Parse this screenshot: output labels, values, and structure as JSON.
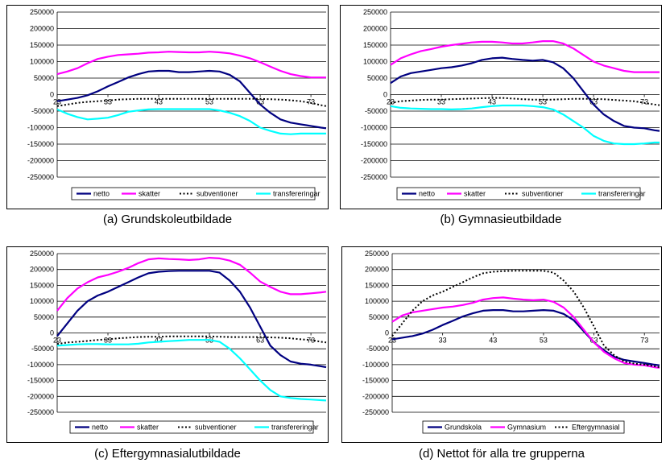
{
  "chart_data": [
    {
      "type": "line",
      "caption": "(a) Grundskoleutbildade",
      "ylim": [
        -250000,
        250000
      ],
      "yticks": [
        250000,
        200000,
        150000,
        100000,
        50000,
        0,
        -50000,
        -100000,
        -150000,
        -200000,
        -250000
      ],
      "ytick_labels": [
        "250000",
        "200000",
        "150000",
        "100000",
        "50000",
        "0",
        "-50000",
        "-100000",
        "-150000",
        "-200000",
        "-250000"
      ],
      "xlim": [
        23,
        76
      ],
      "xticks": [
        23,
        33,
        43,
        53,
        63,
        73
      ],
      "xtick_labels": [
        "23",
        "33",
        "43",
        "53",
        "63",
        "73"
      ],
      "x": [
        23,
        25,
        27,
        29,
        31,
        33,
        35,
        37,
        39,
        41,
        43,
        45,
        47,
        49,
        51,
        53,
        55,
        57,
        59,
        61,
        63,
        65,
        67,
        69,
        71,
        73,
        75,
        76
      ],
      "grid": true,
      "legend": "bottom",
      "series": [
        {
          "name": "netto",
          "color": "#000080",
          "dash": "solid",
          "values": [
            -20000,
            -15000,
            -10000,
            -2000,
            10000,
            25000,
            38000,
            52000,
            62000,
            70000,
            72000,
            72000,
            68000,
            68000,
            70000,
            72000,
            70000,
            60000,
            40000,
            5000,
            -30000,
            -55000,
            -75000,
            -85000,
            -90000,
            -95000,
            -100000,
            -102000
          ]
        },
        {
          "name": "skatter",
          "color": "#FF00FF",
          "dash": "solid",
          "values": [
            62000,
            70000,
            80000,
            95000,
            108000,
            115000,
            120000,
            122000,
            124000,
            127000,
            128000,
            130000,
            129000,
            128000,
            128000,
            130000,
            128000,
            125000,
            118000,
            110000,
            98000,
            85000,
            72000,
            62000,
            56000,
            52000,
            52000,
            52000
          ]
        },
        {
          "name": "subventioner",
          "color": "#000000",
          "dash": "dot",
          "values": [
            -35000,
            -30000,
            -25000,
            -22000,
            -20000,
            -18000,
            -15000,
            -14000,
            -13000,
            -13000,
            -13000,
            -13000,
            -13000,
            -13000,
            -13000,
            -13000,
            -13000,
            -13000,
            -13000,
            -13000,
            -13000,
            -14000,
            -15000,
            -17000,
            -20000,
            -25000,
            -32000,
            -35000
          ]
        },
        {
          "name": "transfereringar",
          "color": "#00FFFF",
          "dash": "solid",
          "values": [
            -45000,
            -58000,
            -68000,
            -75000,
            -73000,
            -70000,
            -62000,
            -52000,
            -48000,
            -45000,
            -44000,
            -44000,
            -44000,
            -44000,
            -44000,
            -44000,
            -48000,
            -55000,
            -65000,
            -80000,
            -100000,
            -110000,
            -118000,
            -120000,
            -118000,
            -118000,
            -118000,
            -118000
          ]
        }
      ]
    },
    {
      "type": "line",
      "caption": "(b) Gymnasieutbildade",
      "ylim": [
        -250000,
        250000
      ],
      "yticks": [
        250000,
        200000,
        150000,
        100000,
        50000,
        0,
        -50000,
        -100000,
        -150000,
        -200000,
        -250000
      ],
      "ytick_labels": [
        "250000",
        "200000",
        "150000",
        "100000",
        "50000",
        "0",
        "-50000",
        "-100000",
        "-150000",
        "-200000",
        "-250000"
      ],
      "xlim": [
        23,
        76
      ],
      "xticks": [
        23,
        33,
        43,
        53,
        63,
        73
      ],
      "xtick_labels": [
        "23",
        "33",
        "43",
        "53",
        "63",
        "73"
      ],
      "x": [
        23,
        25,
        27,
        29,
        31,
        33,
        35,
        37,
        39,
        41,
        43,
        45,
        47,
        49,
        51,
        53,
        55,
        57,
        59,
        61,
        63,
        65,
        67,
        69,
        71,
        73,
        75,
        76
      ],
      "grid": true,
      "legend": "bottom",
      "series": [
        {
          "name": "netto",
          "color": "#000080",
          "dash": "solid",
          "values": [
            35000,
            55000,
            65000,
            70000,
            75000,
            80000,
            83000,
            88000,
            95000,
            105000,
            110000,
            112000,
            108000,
            105000,
            103000,
            105000,
            98000,
            80000,
            50000,
            10000,
            -30000,
            -60000,
            -80000,
            -95000,
            -100000,
            -102000,
            -108000,
            -110000
          ]
        },
        {
          "name": "skatter",
          "color": "#FF00FF",
          "dash": "solid",
          "values": [
            90000,
            110000,
            122000,
            132000,
            138000,
            145000,
            150000,
            154000,
            158000,
            160000,
            160000,
            158000,
            155000,
            155000,
            158000,
            162000,
            162000,
            155000,
            140000,
            120000,
            100000,
            88000,
            80000,
            72000,
            68000,
            68000,
            68000,
            68000
          ]
        },
        {
          "name": "subventioner",
          "color": "#000000",
          "dash": "dot",
          "values": [
            -25000,
            -20000,
            -18000,
            -16000,
            -15000,
            -15000,
            -14000,
            -13000,
            -12000,
            -11000,
            -10000,
            -10000,
            -12000,
            -14000,
            -15000,
            -15000,
            -15000,
            -14000,
            -13000,
            -13000,
            -13000,
            -14000,
            -16000,
            -18000,
            -20000,
            -25000,
            -30000,
            -32000
          ]
        },
        {
          "name": "transfereringar",
          "color": "#00FFFF",
          "dash": "solid",
          "values": [
            -35000,
            -40000,
            -42000,
            -43000,
            -44000,
            -44000,
            -45000,
            -44000,
            -42000,
            -38000,
            -35000,
            -33000,
            -33000,
            -33000,
            -35000,
            -38000,
            -45000,
            -60000,
            -80000,
            -100000,
            -125000,
            -140000,
            -148000,
            -150000,
            -150000,
            -148000,
            -145000,
            -145000
          ]
        }
      ]
    },
    {
      "type": "line",
      "caption": "(c) Eftergymnasialutbildade",
      "ylim": [
        -250000,
        250000
      ],
      "yticks": [
        250000,
        200000,
        150000,
        100000,
        50000,
        0,
        -50000,
        -100000,
        -150000,
        -200000,
        -250000
      ],
      "ytick_labels": [
        "250000",
        "200000",
        "150000",
        "100000",
        "50000",
        "0",
        "-50000",
        "-100000",
        "-150000",
        "-200000",
        "-250000"
      ],
      "xlim": [
        23,
        76
      ],
      "xticks": [
        23,
        33,
        43,
        53,
        63,
        73
      ],
      "xtick_labels": [
        "23",
        "33",
        "43",
        "53",
        "63",
        "73"
      ],
      "x": [
        23,
        25,
        27,
        29,
        31,
        33,
        35,
        37,
        39,
        41,
        43,
        45,
        47,
        49,
        51,
        53,
        55,
        57,
        59,
        61,
        63,
        65,
        67,
        69,
        71,
        73,
        75,
        76
      ],
      "grid": true,
      "legend": "bottom",
      "series": [
        {
          "name": "netto",
          "color": "#000080",
          "dash": "solid",
          "values": [
            -10000,
            30000,
            70000,
            100000,
            118000,
            130000,
            145000,
            160000,
            175000,
            188000,
            193000,
            195000,
            196000,
            196000,
            196000,
            196000,
            190000,
            165000,
            130000,
            80000,
            20000,
            -40000,
            -70000,
            -90000,
            -97000,
            -100000,
            -105000,
            -108000
          ]
        },
        {
          "name": "skatter",
          "color": "#FF00FF",
          "dash": "solid",
          "values": [
            70000,
            110000,
            140000,
            160000,
            175000,
            183000,
            193000,
            205000,
            220000,
            232000,
            235000,
            233000,
            232000,
            230000,
            232000,
            237000,
            235000,
            228000,
            215000,
            190000,
            162000,
            145000,
            130000,
            122000,
            122000,
            125000,
            128000,
            130000
          ]
        },
        {
          "name": "subventioner",
          "color": "#000000",
          "dash": "dot",
          "values": [
            -35000,
            -30000,
            -28000,
            -25000,
            -22000,
            -20000,
            -17000,
            -15000,
            -13000,
            -12000,
            -12000,
            -11000,
            -11000,
            -11000,
            -11000,
            -11000,
            -12000,
            -13000,
            -13000,
            -13000,
            -13000,
            -14000,
            -15000,
            -17000,
            -20000,
            -22000,
            -28000,
            -30000
          ]
        },
        {
          "name": "transfereringar",
          "color": "#00FFFF",
          "dash": "solid",
          "values": [
            -40000,
            -38000,
            -36000,
            -35000,
            -35000,
            -36000,
            -36000,
            -36000,
            -34000,
            -30000,
            -28000,
            -26000,
            -24000,
            -22000,
            -22000,
            -22000,
            -28000,
            -50000,
            -80000,
            -115000,
            -150000,
            -180000,
            -200000,
            -205000,
            -208000,
            -210000,
            -212000,
            -213000
          ]
        }
      ]
    },
    {
      "type": "line",
      "caption": "(d) Nettot för  alla tre grupperna",
      "ylim": [
        -250000,
        250000
      ],
      "yticks": [
        250000,
        200000,
        150000,
        100000,
        50000,
        0,
        -50000,
        -100000,
        -150000,
        -200000,
        -250000
      ],
      "ytick_labels": [
        "250000",
        "200000",
        "150000",
        "100000",
        "50000",
        "0",
        "-50000",
        "-100000",
        "-150000",
        "-200000",
        "-250000"
      ],
      "xlim": [
        23,
        76
      ],
      "xticks": [
        23,
        33,
        43,
        53,
        63,
        73
      ],
      "xtick_labels": [
        "23",
        "33",
        "43",
        "53",
        "63",
        "73"
      ],
      "x": [
        23,
        25,
        27,
        29,
        31,
        33,
        35,
        37,
        39,
        41,
        43,
        45,
        47,
        49,
        51,
        53,
        55,
        57,
        59,
        61,
        63,
        65,
        67,
        69,
        71,
        73,
        75,
        76
      ],
      "grid": true,
      "legend": "bottom",
      "series": [
        {
          "name": "Grundskola",
          "color": "#000080",
          "dash": "solid",
          "values": [
            -20000,
            -15000,
            -10000,
            -2000,
            10000,
            25000,
            38000,
            52000,
            62000,
            70000,
            72000,
            72000,
            68000,
            68000,
            70000,
            72000,
            70000,
            60000,
            40000,
            5000,
            -30000,
            -55000,
            -75000,
            -85000,
            -90000,
            -95000,
            -100000,
            -102000
          ]
        },
        {
          "name": "Gymnasium",
          "color": "#FF00FF",
          "dash": "solid",
          "values": [
            35000,
            55000,
            65000,
            70000,
            75000,
            80000,
            83000,
            88000,
            95000,
            105000,
            110000,
            112000,
            108000,
            105000,
            103000,
            105000,
            98000,
            80000,
            50000,
            10000,
            -30000,
            -60000,
            -80000,
            -95000,
            -100000,
            -102000,
            -108000,
            -110000
          ]
        },
        {
          "name": "Eftergymnasial",
          "color": "#000000",
          "dash": "dot",
          "values": [
            -10000,
            30000,
            70000,
            100000,
            118000,
            130000,
            145000,
            160000,
            175000,
            188000,
            193000,
            195000,
            196000,
            196000,
            196000,
            196000,
            190000,
            165000,
            130000,
            80000,
            20000,
            -40000,
            -70000,
            -90000,
            -97000,
            -100000,
            -105000,
            -108000
          ]
        }
      ]
    }
  ]
}
